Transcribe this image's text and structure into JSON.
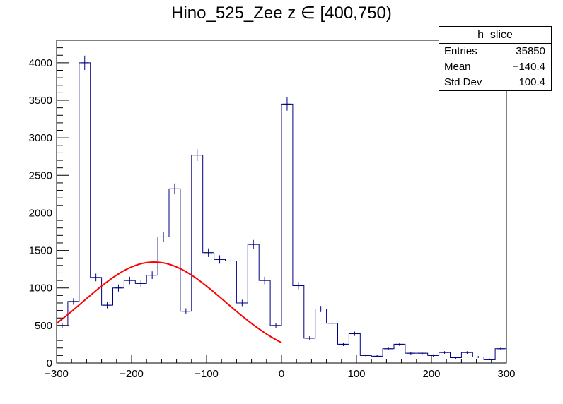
{
  "title": "Hino_525_Zee z  ∈ [400,750)",
  "stats": {
    "name": "h_slice",
    "rows": [
      {
        "label": "Entries",
        "value": "35850"
      },
      {
        "label": "Mean",
        "value": "−140.4"
      },
      {
        "label": "Std Dev",
        "value": "100.4"
      }
    ]
  },
  "chart_data": {
    "type": "histogram",
    "xlim": [
      -300,
      300
    ],
    "ylim": [
      0,
      4300
    ],
    "bin_width": 15,
    "x_ticks": [
      "−300",
      "−200",
      "−100",
      "0",
      "100",
      "200",
      "300"
    ],
    "x_tick_values": [
      -300,
      -200,
      -100,
      0,
      100,
      200,
      300
    ],
    "y_ticks": [
      "0",
      "500",
      "1000",
      "1500",
      "2000",
      "2500",
      "3000",
      "3500",
      "4000"
    ],
    "y_tick_values": [
      0,
      500,
      1000,
      1500,
      2000,
      2500,
      3000,
      3500,
      4000
    ],
    "bins": [
      {
        "x0": -300,
        "value": 500
      },
      {
        "x0": -285,
        "value": 820
      },
      {
        "x0": -270,
        "value": 4000
      },
      {
        "x0": -255,
        "value": 1140
      },
      {
        "x0": -240,
        "value": 770
      },
      {
        "x0": -225,
        "value": 1000
      },
      {
        "x0": -210,
        "value": 1100
      },
      {
        "x0": -195,
        "value": 1060
      },
      {
        "x0": -180,
        "value": 1170
      },
      {
        "x0": -165,
        "value": 1680
      },
      {
        "x0": -150,
        "value": 2320
      },
      {
        "x0": -135,
        "value": 690
      },
      {
        "x0": -120,
        "value": 2770
      },
      {
        "x0": -105,
        "value": 1470
      },
      {
        "x0": -90,
        "value": 1380
      },
      {
        "x0": -75,
        "value": 1360
      },
      {
        "x0": -60,
        "value": 800
      },
      {
        "x0": -45,
        "value": 1580
      },
      {
        "x0": -30,
        "value": 1100
      },
      {
        "x0": -15,
        "value": 500
      },
      {
        "x0": 0,
        "value": 3450
      },
      {
        "x0": 15,
        "value": 1030
      },
      {
        "x0": 30,
        "value": 330
      },
      {
        "x0": 45,
        "value": 720
      },
      {
        "x0": 60,
        "value": 530
      },
      {
        "x0": 75,
        "value": 250
      },
      {
        "x0": 90,
        "value": 390
      },
      {
        "x0": 105,
        "value": 100
      },
      {
        "x0": 120,
        "value": 90
      },
      {
        "x0": 135,
        "value": 190
      },
      {
        "x0": 150,
        "value": 250
      },
      {
        "x0": 165,
        "value": 130
      },
      {
        "x0": 180,
        "value": 130
      },
      {
        "x0": 195,
        "value": 100
      },
      {
        "x0": 210,
        "value": 140
      },
      {
        "x0": 225,
        "value": 70
      },
      {
        "x0": 240,
        "value": 140
      },
      {
        "x0": 255,
        "value": 80
      },
      {
        "x0": 270,
        "value": 50
      },
      {
        "x0": 285,
        "value": 190
      }
    ],
    "fit": {
      "type": "gaussian",
      "color": "#ff0000",
      "x_range": [
        -300,
        0
      ],
      "amplitude": 1345,
      "mean": -170,
      "sigma": 95
    },
    "colors": {
      "hist": "#000080",
      "frame": "#000000",
      "fit": "#ff0000"
    },
    "grid": false
  }
}
